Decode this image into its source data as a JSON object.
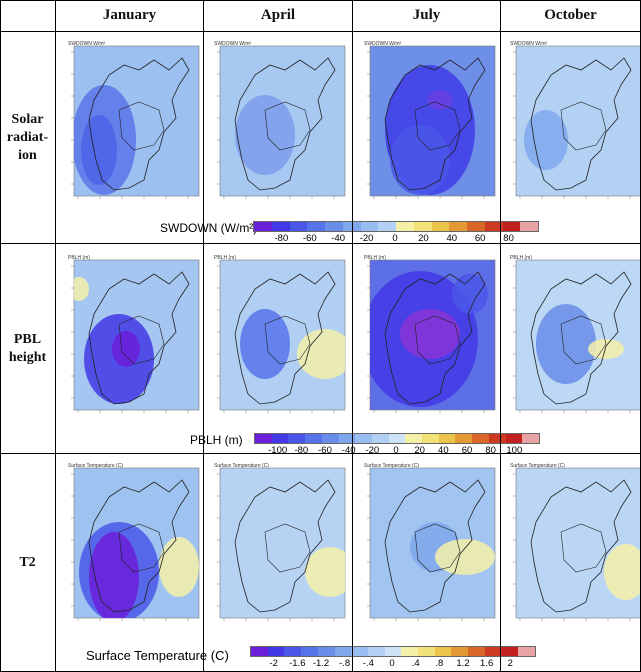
{
  "columns": [
    "January",
    "April",
    "July",
    "October"
  ],
  "rows": [
    {
      "label": "Solar\nradiat-\nion",
      "panel_title": "SWDOWN  W/m²",
      "colorbar": {
        "label": "SWDOWN  (W/m²)",
        "ticks": [
          "-80",
          "-60",
          "-40",
          "-20",
          "0",
          "20",
          "40",
          "60",
          "80"
        ]
      }
    },
    {
      "label": "PBL\nheight",
      "panel_title": "PBLH  (m)",
      "colorbar": {
        "label": "PBLH  (m)",
        "ticks": [
          "-100",
          "-80",
          "-60",
          "-40",
          "-20",
          "0",
          "20",
          "40",
          "60",
          "80",
          "100"
        ]
      }
    },
    {
      "label": "T2",
      "panel_title": "Surface Temperature  (C)",
      "colorbar": {
        "label": "Surface Temperature  (C)",
        "ticks": [
          "-2",
          "-1.6",
          "-1.2",
          "-.8",
          "-.4",
          "0",
          ".4",
          ".8",
          "1.2",
          "1.6",
          "2"
        ]
      }
    }
  ],
  "colors": {
    "scale": [
      "#6a1fd8",
      "#4338e6",
      "#4a57e8",
      "#5773ea",
      "#6a8de9",
      "#7fa8ec",
      "#98bdf0",
      "#b1d0f3",
      "#cfe3f7",
      "#f5f0a8",
      "#f0e178",
      "#eac54a",
      "#e49a34",
      "#d96828",
      "#cc3a22",
      "#c21f1f",
      "#e8a4a4"
    ],
    "border": "#000000"
  }
}
